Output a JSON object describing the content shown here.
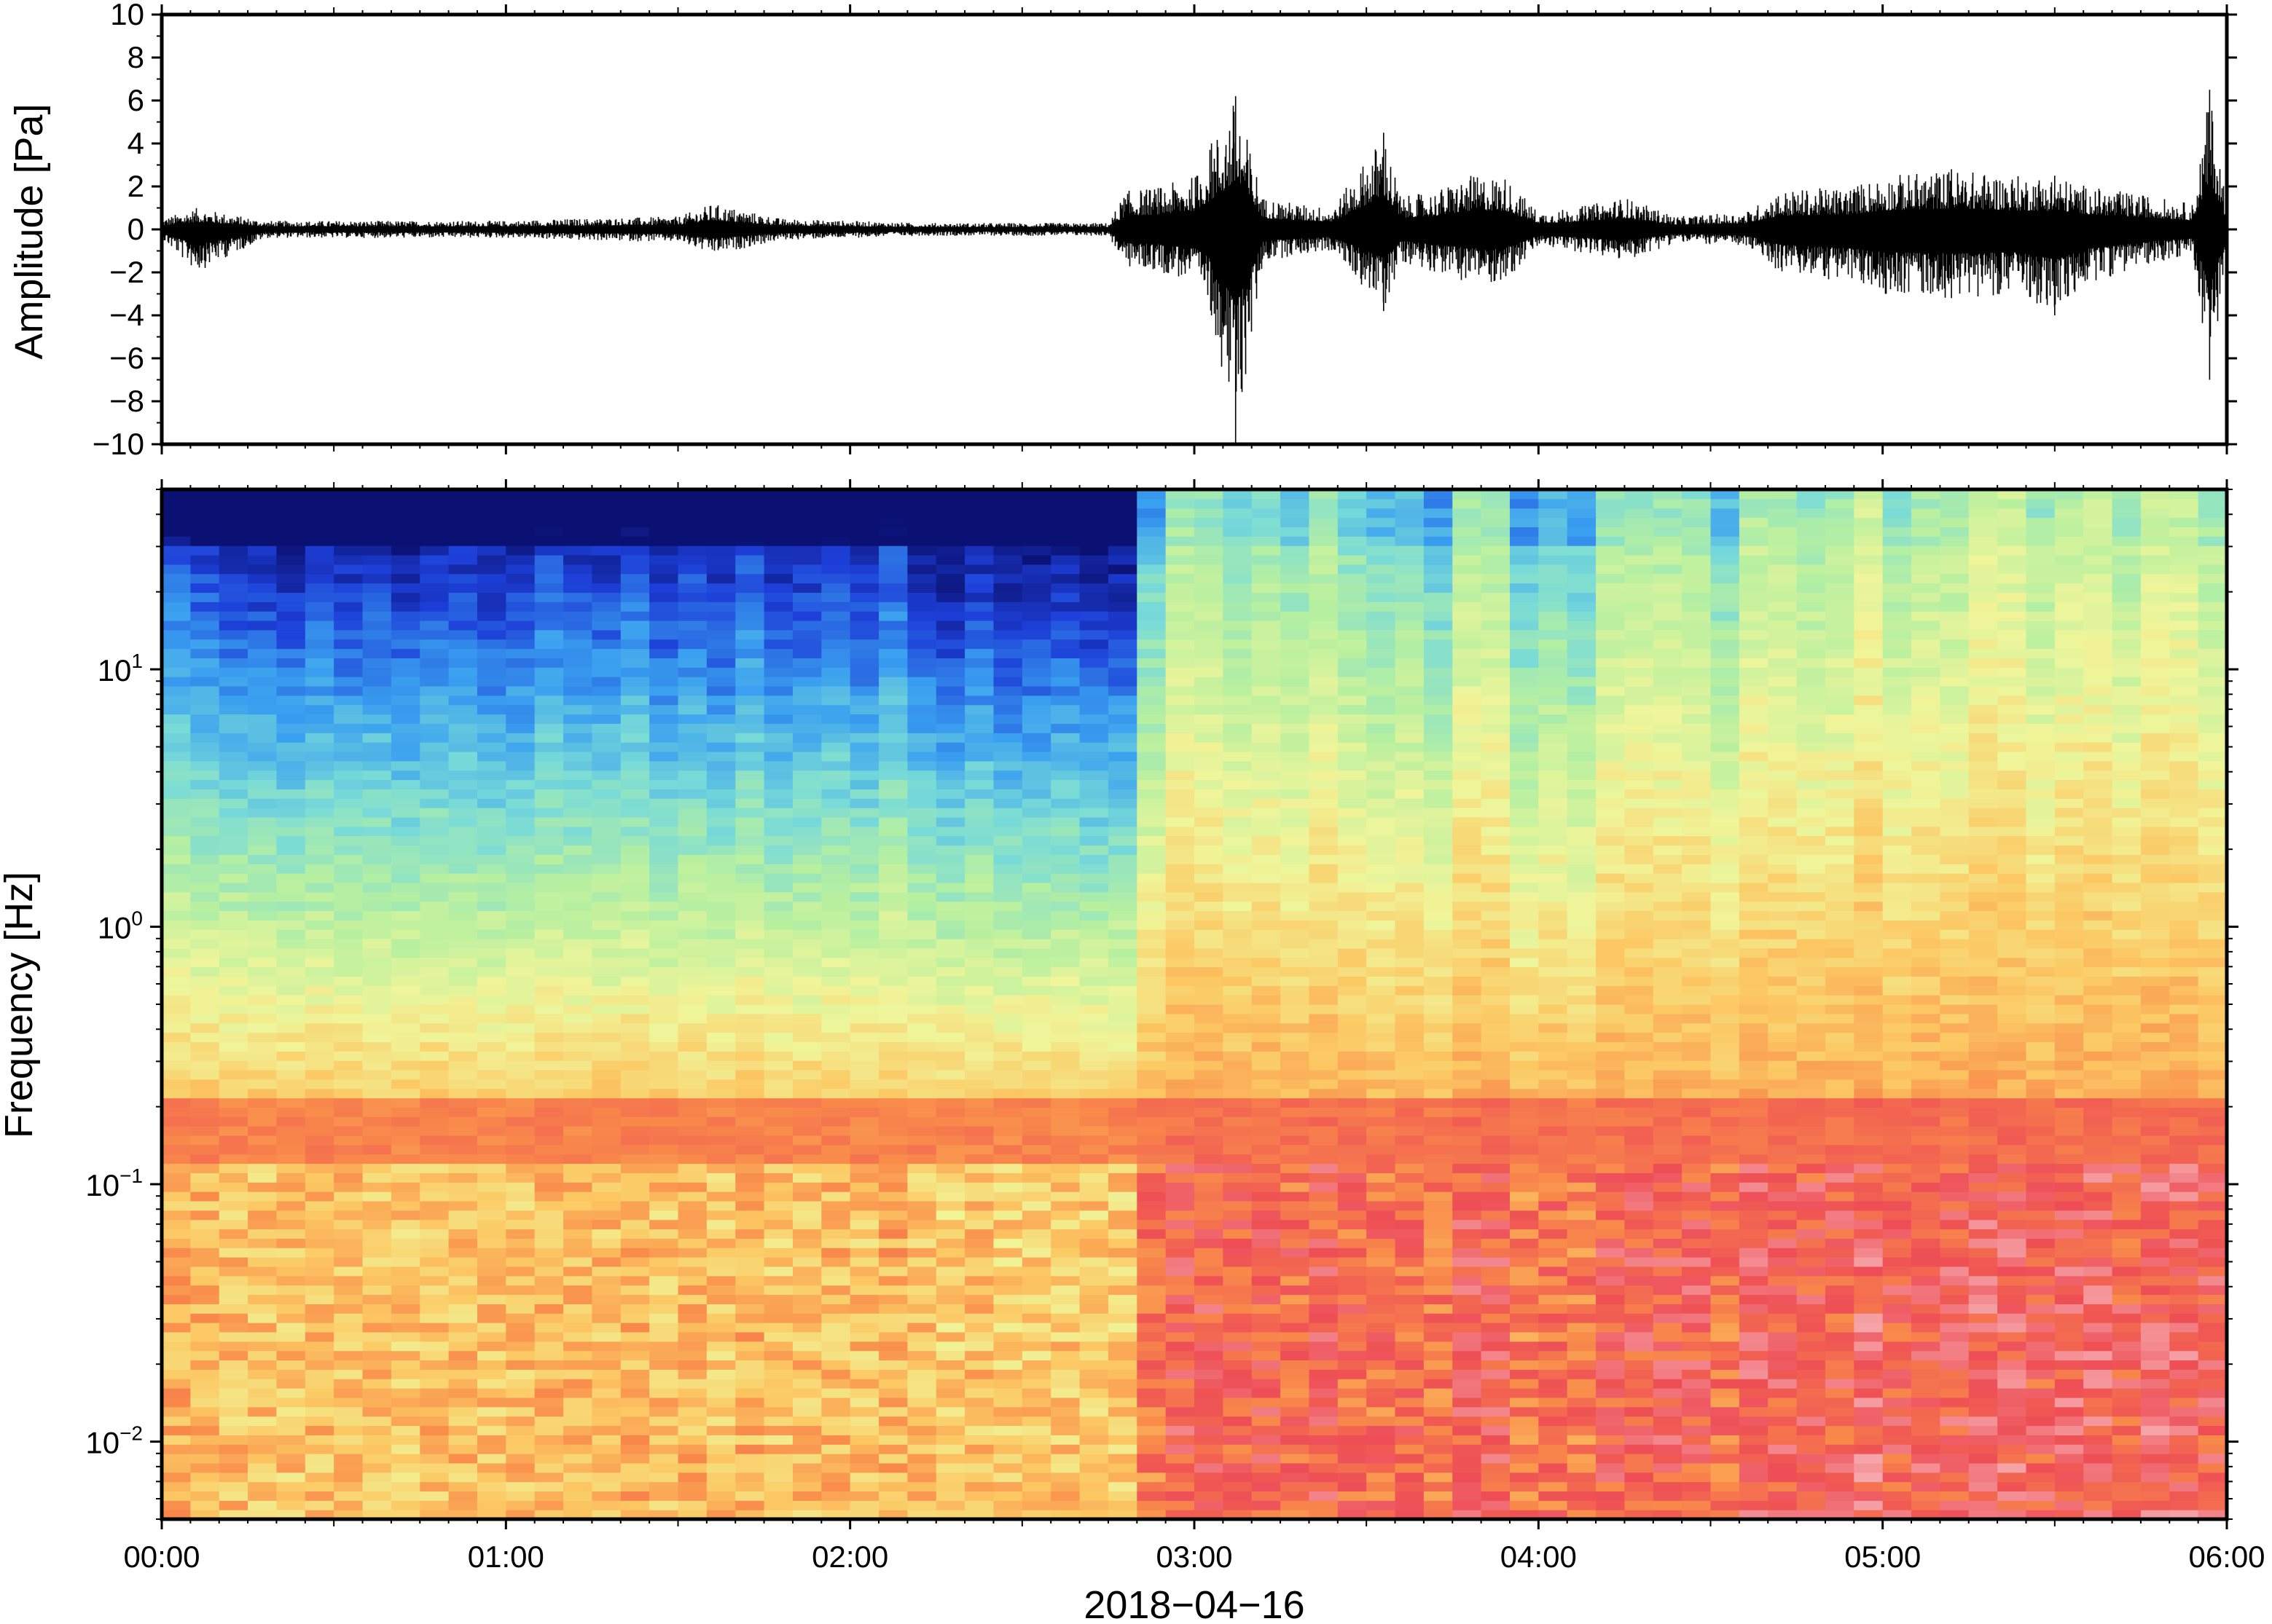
{
  "chart_data": [
    {
      "type": "line",
      "panel": "waveform",
      "title": "",
      "xlabel": "",
      "ylabel": "Amplitude [Pa]",
      "xlim": [
        "00:00",
        "06:00"
      ],
      "ylim": [
        -10,
        10
      ],
      "y_ticks": [
        "10",
        "8",
        "6",
        "4",
        "2",
        "0",
        "−2",
        "−4",
        "−6",
        "−8",
        "−10"
      ],
      "y_tick_values": [
        10,
        8,
        6,
        4,
        2,
        0,
        -2,
        -4,
        -6,
        -8,
        -10
      ],
      "grid": false,
      "series_color": "#000000",
      "envelope": {
        "description_units": "hours since 00:00 vs approximate peak amplitude in Pa",
        "x_hours": [
          0.0,
          0.1,
          0.3,
          0.5,
          0.8,
          1.0,
          1.2,
          1.5,
          1.6,
          1.8,
          2.0,
          2.2,
          2.4,
          2.6,
          2.75,
          2.8,
          2.9,
          3.0,
          3.05,
          3.12,
          3.2,
          3.3,
          3.4,
          3.55,
          3.6,
          3.7,
          3.8,
          3.9,
          4.0,
          4.1,
          4.25,
          4.4,
          4.6,
          4.7,
          4.9,
          5.0,
          5.2,
          5.4,
          5.5,
          5.6,
          5.8,
          5.9,
          5.95,
          6.0
        ],
        "y_peak": [
          0.5,
          1.0,
          0.4,
          0.4,
          0.4,
          0.4,
          0.5,
          0.6,
          1.2,
          0.5,
          0.4,
          0.3,
          0.3,
          0.3,
          0.3,
          1.8,
          2.0,
          2.5,
          4.0,
          6.2,
          1.5,
          1.2,
          1.0,
          4.5,
          1.5,
          1.8,
          2.5,
          2.5,
          0.8,
          1.0,
          1.5,
          0.6,
          0.8,
          1.8,
          2.0,
          2.5,
          2.8,
          2.5,
          2.5,
          2.0,
          1.5,
          1.2,
          6.5,
          1.0
        ],
        "y_trough": [
          -0.5,
          -2.0,
          -0.4,
          -0.4,
          -0.4,
          -0.4,
          -0.5,
          -0.6,
          -1.2,
          -0.5,
          -0.4,
          -0.3,
          -0.3,
          -0.3,
          -0.3,
          -1.8,
          -2.0,
          -2.5,
          -4.0,
          -10.0,
          -1.5,
          -1.2,
          -1.0,
          -3.8,
          -1.5,
          -2.0,
          -2.5,
          -2.5,
          -0.8,
          -1.0,
          -1.5,
          -0.6,
          -0.8,
          -2.0,
          -2.5,
          -3.0,
          -3.2,
          -3.0,
          -4.0,
          -2.5,
          -1.5,
          -1.2,
          -7.0,
          -1.0
        ]
      }
    },
    {
      "type": "heatmap",
      "panel": "spectrogram",
      "title": "",
      "xlabel": "2018−04−16",
      "ylabel": "Frequency [Hz]",
      "x_ticks": [
        "00:00",
        "01:00",
        "02:00",
        "03:00",
        "04:00",
        "05:00",
        "06:00"
      ],
      "y_scale": "log",
      "ylim_hz": [
        0.005,
        50
      ],
      "y_ticks": [
        {
          "base": "10",
          "exp": "1",
          "value": 10
        },
        {
          "base": "10",
          "exp": "0",
          "value": 1
        },
        {
          "base": "10",
          "exp": "−1",
          "value": 0.1
        },
        {
          "base": "10",
          "exp": "−2",
          "value": 0.01
        }
      ],
      "colormap": "spectral (dark blue = low power, light pink = high power)",
      "colormap_stops": [
        "#0b1173",
        "#1d3fd8",
        "#3aa0f0",
        "#79dbd7",
        "#b8f0a0",
        "#f0f59a",
        "#fcc863",
        "#f98a4b",
        "#ee4d55",
        "#f7b0b4"
      ],
      "num_time_columns": 72,
      "quiet_hours_ranges": [
        [
          0.0,
          2.8
        ]
      ],
      "active_hours_ranges": [
        [
          2.8,
          4.6
        ],
        [
          4.6,
          6.0
        ]
      ],
      "description": "Low frequencies (<0.2 Hz) show high power throughout; a persistent band near 0.15–0.2 Hz; high frequencies (>10 Hz) are low power before 02:48 and brighten after 02:48 and after 04:36."
    }
  ]
}
